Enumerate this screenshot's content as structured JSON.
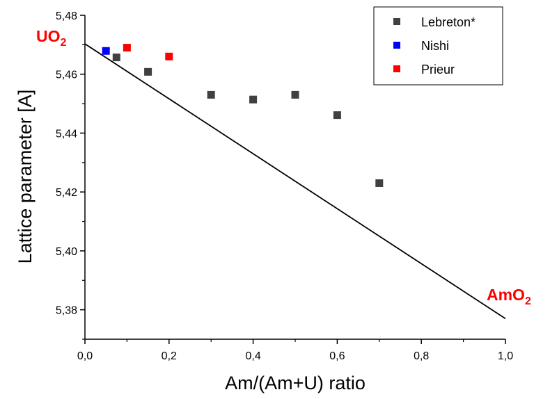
{
  "chart_data": {
    "type": "scatter",
    "xlabel": "Am/(Am+U) ratio",
    "ylabel": "Lattice parameter [A]",
    "xlim": [
      0.0,
      1.0
    ],
    "ylim": [
      5.37,
      5.48
    ],
    "x_ticks": [
      "0,0",
      "0,2",
      "0,4",
      "0,6",
      "0,8",
      "1,0"
    ],
    "y_ticks": [
      "5,38",
      "5,40",
      "5,42",
      "5,44",
      "5,46",
      "5,48"
    ],
    "legend_position": "top-right",
    "series": [
      {
        "name": "Lebreton*",
        "color": "#404040",
        "marker": "square",
        "x": [
          0.075,
          0.15,
          0.3,
          0.4,
          0.5,
          0.6,
          0.7
        ],
        "y": [
          5.4657,
          5.4608,
          5.453,
          5.4514,
          5.453,
          5.4461,
          5.423
        ]
      },
      {
        "name": "Nishi",
        "color": "#0000ff",
        "marker": "square",
        "x": [
          0.05
        ],
        "y": [
          5.4679
        ]
      },
      {
        "name": "Prieur",
        "color": "#ff0000",
        "marker": "square",
        "x": [
          0.1,
          0.2
        ],
        "y": [
          5.469,
          5.466
        ]
      }
    ],
    "reference_line": {
      "color": "#000000",
      "x": [
        0.0,
        1.0
      ],
      "y": [
        5.4703,
        5.377
      ]
    },
    "annotations": [
      {
        "text": "UO",
        "subscript": "2",
        "color": "#ff0000",
        "anchor": "top-left"
      },
      {
        "text": "AmO",
        "subscript": "2",
        "color": "#ff0000",
        "anchor": "bottom-right"
      }
    ]
  }
}
